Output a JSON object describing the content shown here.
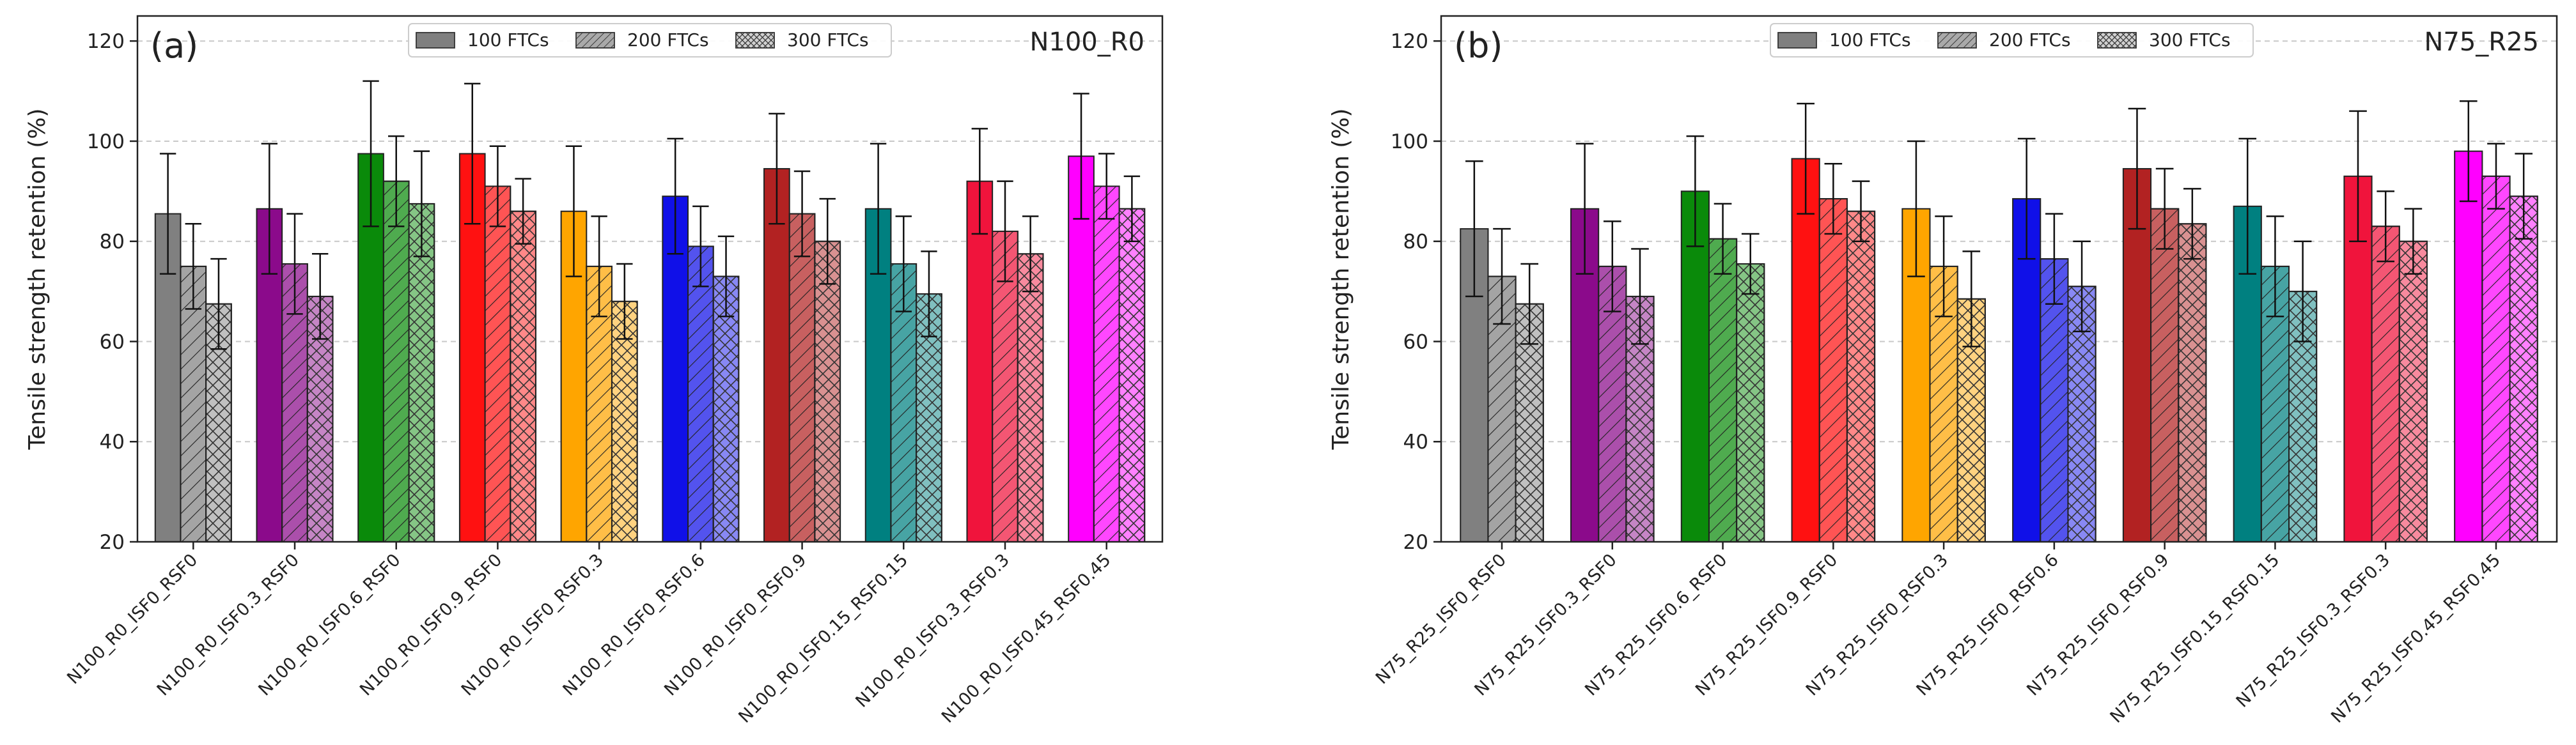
{
  "chart_data": [
    {
      "type": "bar",
      "panel_label": "(a)",
      "title": "N100_R0",
      "ylabel": "Tensile strength retention (%)",
      "xlabel": "",
      "ylim": [
        20,
        125
      ],
      "yticks": [
        20,
        40,
        60,
        80,
        100,
        120
      ],
      "grid": "horizontal dashed",
      "legend_position": "top-center",
      "categories": [
        "N100_R0_ISF0_RSF0",
        "N100_R0_ISF0.3_RSF0",
        "N100_R0_ISF0.6_RSF0",
        "N100_R0_ISF0.9_RSF0",
        "N100_R0_ISF0_RSF0.3",
        "N100_R0_ISF0_RSF0.6",
        "N100_R0_ISF0_RSF0.9",
        "N100_R0_ISF0.15_RSF0.15",
        "N100_R0_ISF0.3_RSF0.3",
        "N100_R0_ISF0.45_RSF0.45"
      ],
      "category_colors": [
        "#808080",
        "#8b0a8b",
        "#0a8a0a",
        "#ff1111",
        "#ffa500",
        "#1010e8",
        "#b22222",
        "#008080",
        "#f0143c",
        "#ff00ff"
      ],
      "series": [
        {
          "name": "100 FTCs",
          "pattern": "solid",
          "values": [
            85.5,
            86.5,
            97.5,
            97.5,
            86,
            89,
            94.5,
            86.5,
            92,
            97
          ],
          "errors": [
            12,
            13,
            14.5,
            14,
            13,
            11.5,
            11,
            13,
            10.5,
            12.5
          ]
        },
        {
          "name": "200 FTCs",
          "pattern": "hatch",
          "values": [
            75,
            75.5,
            92,
            91,
            75,
            79,
            85.5,
            75.5,
            82,
            91
          ],
          "errors": [
            8.5,
            10,
            9,
            8,
            10,
            8,
            8.5,
            9.5,
            10,
            6.5
          ]
        },
        {
          "name": "300 FTCs",
          "pattern": "crosshatch",
          "values": [
            67.5,
            69,
            87.5,
            86,
            68,
            73,
            80,
            69.5,
            77.5,
            86.5
          ],
          "errors": [
            9,
            8.5,
            10.5,
            6.5,
            7.5,
            8,
            8.5,
            8.5,
            7.5,
            6.5
          ]
        }
      ]
    },
    {
      "type": "bar",
      "panel_label": "(b)",
      "title": "N75_R25",
      "ylabel": "Tensile strength retention (%)",
      "xlabel": "",
      "ylim": [
        20,
        125
      ],
      "yticks": [
        20,
        40,
        60,
        80,
        100,
        120
      ],
      "grid": "horizontal dashed",
      "legend_position": "top-center",
      "categories": [
        "N75_R25_ISF0_RSF0",
        "N75_R25_ISF0.3_RSF0",
        "N75_R25_ISF0.6_RSF0",
        "N75_R25_ISF0.9_RSF0",
        "N75_R25_ISF0_RSF0.3",
        "N75_R25_ISF0_RSF0.6",
        "N75_R25_ISF0_RSF0.9",
        "N75_R25_ISF0.15_RSF0.15",
        "N75_R25_ISF0.3_RSF0.3",
        "N75_R25_ISF0.45_RSF0.45"
      ],
      "category_colors": [
        "#808080",
        "#8b0a8b",
        "#0a8a0a",
        "#ff1111",
        "#ffa500",
        "#1010e8",
        "#b22222",
        "#008080",
        "#f0143c",
        "#ff00ff"
      ],
      "series": [
        {
          "name": "100 FTCs",
          "pattern": "solid",
          "values": [
            82.5,
            86.5,
            90,
            96.5,
            86.5,
            88.5,
            94.5,
            87,
            93,
            98
          ],
          "errors": [
            13.5,
            13,
            11,
            11,
            13.5,
            12,
            12,
            13.5,
            13,
            10
          ]
        },
        {
          "name": "200 FTCs",
          "pattern": "hatch",
          "values": [
            73,
            75,
            80.5,
            88.5,
            75,
            76.5,
            86.5,
            75,
            83,
            93
          ],
          "errors": [
            9.5,
            9,
            7,
            7,
            10,
            9,
            8,
            10,
            7,
            6.5
          ]
        },
        {
          "name": "300 FTCs",
          "pattern": "crosshatch",
          "values": [
            67.5,
            69,
            75.5,
            86,
            68.5,
            71,
            83.5,
            70,
            80,
            89
          ],
          "errors": [
            8,
            9.5,
            6,
            6,
            9.5,
            9,
            7,
            10,
            6.5,
            8.5
          ]
        }
      ]
    }
  ]
}
